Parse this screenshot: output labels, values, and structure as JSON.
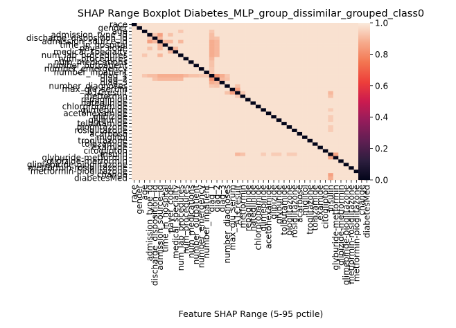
{
  "chart_data": {
    "type": "heatmap",
    "title": "SHAP Range Boxplot Diabetes_MLP_group_dissimilar_grouped_class0",
    "xlabel": "Feature SHAP Range (5-95 pctile)",
    "ylabel": "",
    "features": [
      "race",
      "gender",
      "age",
      "admission_type_id",
      "discharge_disposition_id",
      "admission_source_id",
      "time_in_hospital",
      "payer_code",
      "medical_specialty",
      "num_lab_procedures",
      "num_procedures",
      "num_medications",
      "number_outpatient",
      "number_emergency",
      "number_inpatient",
      "diag_1",
      "diag_2",
      "diag_3",
      "number_diagnoses",
      "max_glu_serum",
      "A1Cresult",
      "metformin",
      "repaglinide",
      "nateglinide",
      "chlorpropamide",
      "glimepiride",
      "acetohexamide",
      "glipizide",
      "glyburide",
      "tolbutamide",
      "pioglitazone",
      "rosiglitazone",
      "acarbose",
      "miglitol",
      "troglitazone",
      "tolazamide",
      "examide",
      "citoglipton",
      "insulin",
      "glyburide-metformin",
      "glipizide-metformin",
      "glimepiride-pioglitazone",
      "metformin-rosiglitazone",
      "metformin-pioglitazone",
      "change",
      "diabetesMed"
    ],
    "default_value": 0.98,
    "diagonal_value": 0.0,
    "cells": [
      [
        3,
        4,
        0.93
      ],
      [
        4,
        3,
        0.93
      ],
      [
        3,
        5,
        0.85
      ],
      [
        5,
        3,
        0.85
      ],
      [
        4,
        5,
        0.9
      ],
      [
        5,
        4,
        0.9
      ],
      [
        5,
        6,
        0.9
      ],
      [
        6,
        5,
        0.9
      ],
      [
        3,
        7,
        0.92
      ],
      [
        7,
        3,
        0.92
      ],
      [
        5,
        7,
        0.9
      ],
      [
        7,
        5,
        0.9
      ],
      [
        7,
        8,
        0.9
      ],
      [
        8,
        7,
        0.9
      ],
      [
        2,
        9,
        0.93
      ],
      [
        9,
        2,
        0.93
      ],
      [
        5,
        9,
        0.9
      ],
      [
        9,
        5,
        0.9
      ],
      [
        2,
        15,
        0.93
      ],
      [
        15,
        2,
        0.93
      ],
      [
        3,
        15,
        0.91
      ],
      [
        15,
        3,
        0.91
      ],
      [
        4,
        15,
        0.91
      ],
      [
        15,
        4,
        0.91
      ],
      [
        5,
        15,
        0.88
      ],
      [
        15,
        5,
        0.88
      ],
      [
        6,
        15,
        0.88
      ],
      [
        15,
        6,
        0.88
      ],
      [
        7,
        15,
        0.88
      ],
      [
        15,
        7,
        0.88
      ],
      [
        8,
        15,
        0.88
      ],
      [
        15,
        8,
        0.88
      ],
      [
        9,
        15,
        0.88
      ],
      [
        15,
        9,
        0.88
      ],
      [
        10,
        15,
        0.9
      ],
      [
        15,
        10,
        0.9
      ],
      [
        11,
        15,
        0.92
      ],
      [
        15,
        11,
        0.92
      ],
      [
        12,
        15,
        0.92
      ],
      [
        15,
        12,
        0.92
      ],
      [
        13,
        15,
        0.93
      ],
      [
        15,
        13,
        0.93
      ],
      [
        14,
        15,
        0.93
      ],
      [
        15,
        14,
        0.93
      ],
      [
        16,
        15,
        0.82
      ],
      [
        15,
        16,
        0.82
      ],
      [
        17,
        15,
        0.88
      ],
      [
        15,
        17,
        0.88
      ],
      [
        16,
        17,
        0.9
      ],
      [
        17,
        16,
        0.9
      ],
      [
        4,
        16,
        0.92
      ],
      [
        16,
        4,
        0.92
      ],
      [
        5,
        16,
        0.9
      ],
      [
        16,
        5,
        0.9
      ],
      [
        6,
        16,
        0.9
      ],
      [
        16,
        6,
        0.9
      ],
      [
        7,
        16,
        0.9
      ],
      [
        16,
        7,
        0.9
      ],
      [
        8,
        16,
        0.9
      ],
      [
        16,
        8,
        0.9
      ],
      [
        9,
        16,
        0.9
      ],
      [
        16,
        9,
        0.9
      ],
      [
        15,
        18,
        0.93
      ],
      [
        18,
        15,
        0.93
      ],
      [
        16,
        18,
        0.92
      ],
      [
        18,
        16,
        0.92
      ],
      [
        19,
        20,
        0.85
      ],
      [
        20,
        19,
        0.85
      ],
      [
        18,
        20,
        0.92
      ],
      [
        20,
        18,
        0.92
      ],
      [
        20,
        21,
        0.93
      ],
      [
        21,
        20,
        0.93
      ],
      [
        20,
        38,
        0.9
      ],
      [
        38,
        20,
        0.9
      ],
      [
        21,
        38,
        0.92
      ],
      [
        38,
        21,
        0.92
      ],
      [
        25,
        38,
        0.94
      ],
      [
        38,
        25,
        0.94
      ],
      [
        27,
        38,
        0.94
      ],
      [
        38,
        27,
        0.94
      ],
      [
        28,
        38,
        0.94
      ],
      [
        38,
        28,
        0.94
      ],
      [
        30,
        38,
        0.94
      ],
      [
        38,
        30,
        0.94
      ],
      [
        31,
        38,
        0.94
      ],
      [
        38,
        31,
        0.94
      ],
      [
        38,
        39,
        0.86
      ],
      [
        39,
        38,
        0.86
      ],
      [
        38,
        44,
        0.85
      ],
      [
        44,
        38,
        0.85
      ],
      [
        38,
        45,
        0.88
      ],
      [
        45,
        38,
        0.88
      ],
      [
        44,
        45,
        0.8
      ],
      [
        45,
        44,
        0.8
      ]
    ],
    "colorbar": {
      "min": 0.0,
      "max": 1.0,
      "ticks": [
        "0.0",
        "0.2",
        "0.4",
        "0.6",
        "0.8",
        "1.0"
      ]
    },
    "grid": false
  }
}
